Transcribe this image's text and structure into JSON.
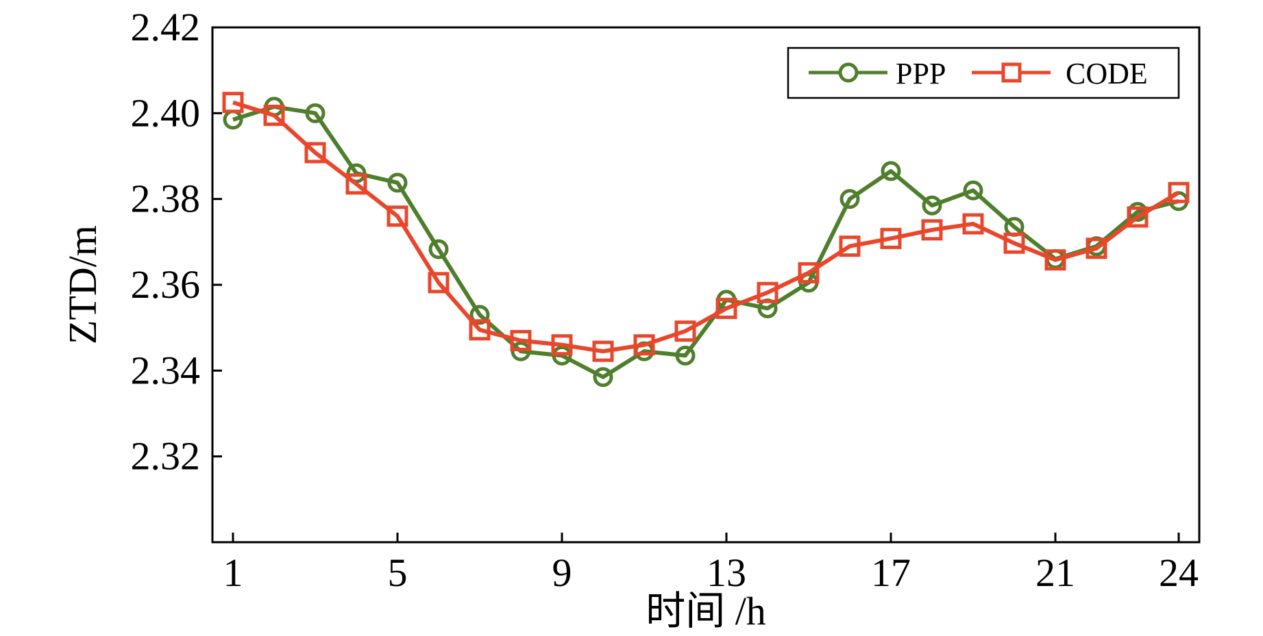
{
  "chart_data": {
    "type": "line",
    "xlabel": "时间 /h",
    "ylabel": "ZTD/m",
    "xlim": [
      0.5,
      24.5
    ],
    "ylim": [
      2.3,
      2.42
    ],
    "xticks": [
      1,
      5,
      9,
      13,
      17,
      21,
      24
    ],
    "yticks": [
      "2.32",
      "2.34",
      "2.36",
      "2.38",
      "2.40",
      "2.42"
    ],
    "grid": false,
    "legend_position": "top-right",
    "x": [
      1,
      2,
      3,
      4,
      5,
      6,
      7,
      8,
      9,
      10,
      11,
      12,
      13,
      14,
      15,
      16,
      17,
      18,
      19,
      20,
      21,
      22,
      23,
      24
    ],
    "series": [
      {
        "name": "PPP",
        "marker": "circle",
        "color": "#4f7f2c",
        "values": [
          2.3985,
          2.4015,
          2.4,
          2.386,
          2.3838,
          2.3683,
          2.353,
          2.3445,
          2.3435,
          2.3385,
          2.3445,
          2.3435,
          2.3565,
          2.3545,
          2.3605,
          2.38,
          2.3865,
          2.3785,
          2.382,
          2.3735,
          2.366,
          2.369,
          2.377,
          2.3795
        ]
      },
      {
        "name": "CODE",
        "marker": "square",
        "color": "#e8472c",
        "values": [
          2.4025,
          2.3995,
          2.3908,
          2.3835,
          2.376,
          2.3605,
          2.3495,
          2.347,
          2.346,
          2.3445,
          2.346,
          2.3492,
          2.3545,
          2.3582,
          2.3628,
          2.369,
          2.3708,
          2.3728,
          2.3742,
          2.3697,
          2.3658,
          2.3685,
          2.3758,
          2.3815
        ]
      }
    ]
  }
}
